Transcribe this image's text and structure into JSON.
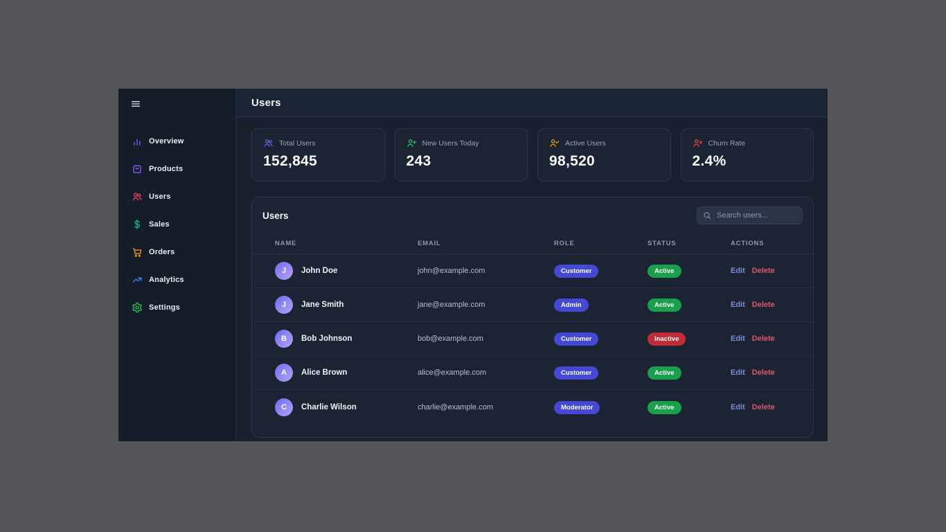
{
  "app": {
    "menu_icon": "menu-icon"
  },
  "header": {
    "title": "Users"
  },
  "sidebar": {
    "items": [
      {
        "label": "Overview",
        "icon": "bar-chart-icon",
        "color": "#6366f1"
      },
      {
        "label": "Products",
        "icon": "shopping-bag-icon",
        "color": "#8b5cf6"
      },
      {
        "label": "Users",
        "icon": "users-icon",
        "color": "#f43f5e"
      },
      {
        "label": "Sales",
        "icon": "dollar-icon",
        "color": "#10b981"
      },
      {
        "label": "Orders",
        "icon": "cart-icon",
        "color": "#f59e0b"
      },
      {
        "label": "Analytics",
        "icon": "trend-up-icon",
        "color": "#3b82f6"
      },
      {
        "label": "Settings",
        "icon": "gear-icon",
        "color": "#22c55e"
      }
    ]
  },
  "stats": [
    {
      "label": "Total Users",
      "value": "152,845",
      "icon": "users-icon",
      "color": "#6366f1"
    },
    {
      "label": "New Users Today",
      "value": "243",
      "icon": "user-plus-icon",
      "color": "#22c55e"
    },
    {
      "label": "Active Users",
      "value": "98,520",
      "icon": "user-check-icon",
      "color": "#f59e0b"
    },
    {
      "label": "Churn Rate",
      "value": "2.4%",
      "icon": "user-x-icon",
      "color": "#ef4444"
    }
  ],
  "table": {
    "title": "Users",
    "search_placeholder": "Search users...",
    "search_icon": "search-icon",
    "columns": [
      "NAME",
      "EMAIL",
      "ROLE",
      "STATUS",
      "ACTIONS"
    ],
    "actions": {
      "edit": "Edit",
      "delete": "Delete"
    },
    "rows": [
      {
        "initial": "J",
        "name": "John Doe",
        "email": "john@example.com",
        "role": "Customer",
        "status": "Active"
      },
      {
        "initial": "J",
        "name": "Jane Smith",
        "email": "jane@example.com",
        "role": "Admin",
        "status": "Active"
      },
      {
        "initial": "B",
        "name": "Bob Johnson",
        "email": "bob@example.com",
        "role": "Customer",
        "status": "Inactive"
      },
      {
        "initial": "A",
        "name": "Alice Brown",
        "email": "alice@example.com",
        "role": "Customer",
        "status": "Active"
      },
      {
        "initial": "C",
        "name": "Charlie Wilson",
        "email": "charlie@example.com",
        "role": "Moderator",
        "status": "Active"
      }
    ]
  },
  "colors": {
    "role_badge": "#4349d4",
    "status_active": "#18a04c",
    "status_inactive": "#c02d38",
    "edit_link": "#7e8bd6",
    "delete_link": "#d5596b",
    "avatar_gradient_start": "#6d6bf0",
    "avatar_gradient_end": "#b6a3f8"
  }
}
